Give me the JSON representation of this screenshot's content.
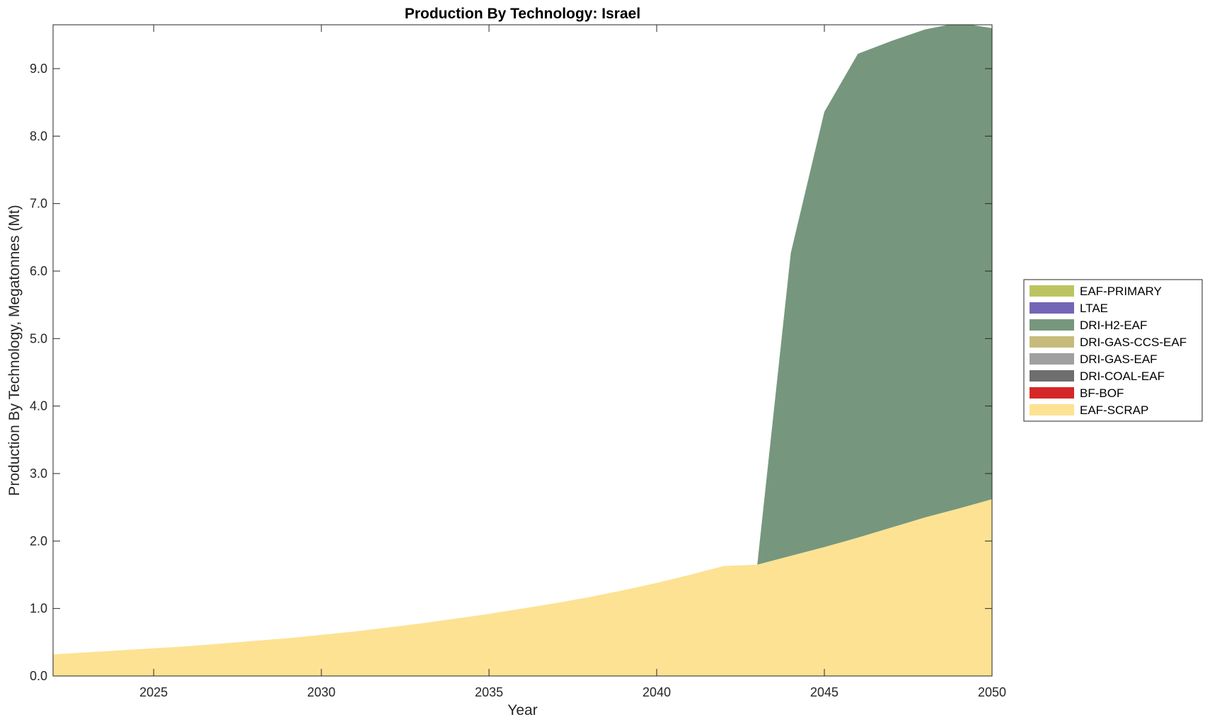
{
  "chart_data": {
    "type": "area",
    "stacked": true,
    "title": "Production By Technology: Israel",
    "xlabel": "Year",
    "ylabel": "Production By Technology, Megatonnes (Mt)",
    "xlim": [
      2022,
      2050
    ],
    "ylim": [
      0,
      9.65
    ],
    "xticks": [
      2025,
      2030,
      2035,
      2040,
      2045,
      2050
    ],
    "xtick_labels": [
      "2025",
      "2030",
      "2035",
      "2040",
      "2045",
      "2050"
    ],
    "yticks": [
      0,
      1,
      2,
      3,
      4,
      5,
      6,
      7,
      8,
      9
    ],
    "ytick_labels": [
      "0.0",
      "1.0",
      "2.0",
      "3.0",
      "4.0",
      "5.0",
      "6.0",
      "7.0",
      "8.0",
      "9.0"
    ],
    "grid": false,
    "legend_position": "right",
    "x": [
      2022,
      2023,
      2024,
      2025,
      2026,
      2027,
      2028,
      2029,
      2030,
      2031,
      2032,
      2033,
      2034,
      2035,
      2036,
      2037,
      2038,
      2039,
      2040,
      2041,
      2042,
      2043,
      2044,
      2045,
      2046,
      2047,
      2048,
      2049,
      2050
    ],
    "series": [
      {
        "name": "EAF-SCRAP",
        "color": "#FDE293",
        "values": [
          0.32,
          0.35,
          0.38,
          0.41,
          0.44,
          0.48,
          0.52,
          0.56,
          0.61,
          0.66,
          0.72,
          0.78,
          0.85,
          0.92,
          1.0,
          1.08,
          1.17,
          1.27,
          1.38,
          1.5,
          1.63,
          1.65,
          1.78,
          1.91,
          2.05,
          2.2,
          2.35,
          2.48,
          2.62
        ]
      },
      {
        "name": "BF-BOF",
        "color": "#D62728",
        "values": [
          0,
          0,
          0,
          0,
          0,
          0,
          0,
          0,
          0,
          0,
          0,
          0,
          0,
          0,
          0,
          0,
          0,
          0,
          0,
          0,
          0,
          0,
          0,
          0,
          0,
          0,
          0,
          0,
          0
        ]
      },
      {
        "name": "DRI-COAL-EAF",
        "color": "#6E6E6E",
        "values": [
          0,
          0,
          0,
          0,
          0,
          0,
          0,
          0,
          0,
          0,
          0,
          0,
          0,
          0,
          0,
          0,
          0,
          0,
          0,
          0,
          0,
          0,
          0,
          0,
          0,
          0,
          0,
          0,
          0
        ]
      },
      {
        "name": "DRI-GAS-EAF",
        "color": "#A0A0A0",
        "values": [
          0,
          0,
          0,
          0,
          0,
          0,
          0,
          0,
          0,
          0,
          0,
          0,
          0,
          0,
          0,
          0,
          0,
          0,
          0,
          0,
          0,
          0,
          0,
          0,
          0,
          0,
          0,
          0,
          0
        ]
      },
      {
        "name": "DRI-GAS-CCS-EAF",
        "color": "#C6BB7B",
        "values": [
          0,
          0,
          0,
          0,
          0,
          0,
          0,
          0,
          0,
          0,
          0,
          0,
          0,
          0,
          0,
          0,
          0,
          0,
          0,
          0,
          0,
          0,
          0,
          0,
          0,
          0,
          0,
          0,
          0
        ]
      },
      {
        "name": "DRI-H2-EAF",
        "color": "#76977D",
        "values": [
          0,
          0,
          0,
          0,
          0,
          0,
          0,
          0,
          0,
          0,
          0,
          0,
          0,
          0,
          0,
          0,
          0,
          0,
          0,
          0,
          0,
          0,
          4.49,
          6.45,
          7.17,
          7.21,
          7.23,
          7.2,
          6.98
        ]
      },
      {
        "name": "LTAE",
        "color": "#7466B6",
        "values": [
          0,
          0,
          0,
          0,
          0,
          0,
          0,
          0,
          0,
          0,
          0,
          0,
          0,
          0,
          0,
          0,
          0,
          0,
          0,
          0,
          0,
          0,
          0,
          0,
          0,
          0,
          0,
          0,
          0
        ]
      },
      {
        "name": "EAF-PRIMARY",
        "color": "#BCC461",
        "values": [
          0,
          0,
          0,
          0,
          0,
          0,
          0,
          0,
          0,
          0,
          0,
          0,
          0,
          0,
          0,
          0,
          0,
          0,
          0,
          0,
          0,
          0,
          0,
          0,
          0,
          0,
          0,
          0,
          0
        ]
      }
    ],
    "legend_order": [
      "EAF-PRIMARY",
      "LTAE",
      "DRI-H2-EAF",
      "DRI-GAS-CCS-EAF",
      "DRI-GAS-EAF",
      "DRI-COAL-EAF",
      "BF-BOF",
      "EAF-SCRAP"
    ]
  }
}
